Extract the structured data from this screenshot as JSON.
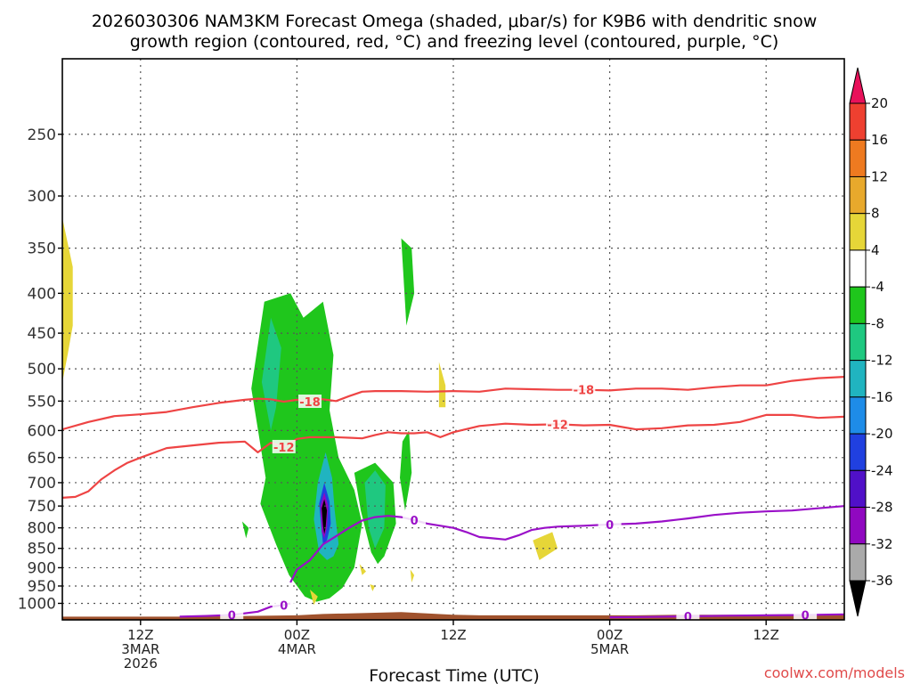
{
  "chart_data": {
    "type": "time-height cross section",
    "title_line1": "2026030306 NAM3KM Forecast Omega (shaded, μbar/s) for K9B6 with dendritic snow",
    "title_line2": "growth region (contoured, red, °C) and freezing level (contoured, purple, °C)",
    "xlabel": "Forecast Time (UTC)",
    "credit": "coolwx.com/models",
    "x_range_hours": [
      0,
      60
    ],
    "x_ticks": [
      {
        "hour": 6,
        "lines": [
          "12Z",
          "3MAR",
          "2026"
        ]
      },
      {
        "hour": 18,
        "lines": [
          "00Z",
          "4MAR"
        ]
      },
      {
        "hour": 30,
        "lines": [
          "12Z"
        ]
      },
      {
        "hour": 42,
        "lines": [
          "00Z",
          "5MAR"
        ]
      },
      {
        "hour": 54,
        "lines": [
          "12Z"
        ]
      }
    ],
    "y_range_hPa": [
      1050,
      200
    ],
    "y_ticks": [
      250,
      300,
      350,
      400,
      450,
      500,
      550,
      600,
      650,
      700,
      750,
      800,
      850,
      900,
      950,
      1000
    ],
    "colorbar": {
      "levels": [
        20,
        16,
        12,
        8,
        4,
        -4,
        -8,
        -12,
        -16,
        -20,
        -24,
        -28,
        -32,
        -36
      ],
      "colors": [
        "#e8115a",
        "#ee4030",
        "#ee7a20",
        "#e8a92c",
        "#e6d638",
        "#ffffff",
        "#1fc61c",
        "#1fc880",
        "#20b4c0",
        "#1e8ce8",
        "#2040e0",
        "#5010c8",
        "#9008c0",
        "#aaaaaa",
        "#000000"
      ]
    },
    "dgz_contours": [
      {
        "value": -18,
        "label": "-18",
        "x": [
          0,
          2,
          4,
          6,
          8,
          10,
          12,
          14,
          15,
          16,
          17,
          18,
          19,
          19.5,
          20,
          21,
          22,
          23,
          24,
          26,
          28,
          30,
          32,
          34,
          36,
          38,
          40,
          42,
          44,
          46,
          48,
          50,
          52,
          54,
          56,
          58,
          60
        ],
        "p": [
          598,
          585,
          575,
          572,
          568,
          560,
          553,
          548,
          546,
          547,
          551,
          548,
          551,
          547,
          547,
          550,
          542,
          535,
          534,
          534,
          535,
          534,
          535,
          530,
          531,
          532,
          532,
          533,
          530,
          530,
          532,
          528,
          525,
          525,
          518,
          514,
          512
        ]
      },
      {
        "value": -12,
        "label": "-12",
        "x": [
          0,
          1,
          2,
          3,
          4,
          5,
          6,
          8,
          10,
          12,
          14,
          15,
          16,
          17,
          18,
          19,
          20,
          21,
          22,
          23,
          24,
          25,
          26,
          27,
          28,
          29,
          30,
          32,
          34,
          36,
          38,
          40,
          42,
          44,
          46,
          48,
          50,
          52,
          54,
          56,
          58,
          60
        ],
        "p": [
          732,
          730,
          718,
          693,
          675,
          660,
          650,
          632,
          627,
          622,
          620,
          640,
          622,
          630,
          615,
          612,
          612,
          612,
          613,
          614,
          608,
          603,
          605,
          605,
          603,
          612,
          603,
          592,
          588,
          590,
          589,
          591,
          590,
          598,
          596,
          591,
          590,
          585,
          573,
          573,
          578,
          576
        ]
      }
    ],
    "freezing_contours": [
      {
        "value": 0,
        "label": "0",
        "x": [
          17.5,
          18,
          19,
          19.5,
          20,
          21,
          22,
          23,
          24,
          25,
          26,
          27,
          28,
          29,
          30,
          31,
          32,
          33,
          34,
          35,
          36,
          37,
          38,
          40,
          42,
          44,
          46,
          48,
          50,
          52,
          54,
          56,
          58,
          60
        ],
        "p": [
          940,
          905,
          880,
          860,
          840,
          820,
          800,
          783,
          775,
          772,
          775,
          782,
          790,
          795,
          800,
          810,
          822,
          825,
          828,
          818,
          805,
          800,
          797,
          795,
          792,
          790,
          785,
          778,
          770,
          765,
          762,
          760,
          755,
          750
        ]
      },
      {
        "value": 0,
        "label": "0",
        "x": [
          9,
          11,
          13,
          15,
          16,
          17,
          17.5
        ],
        "p": [
          1040,
          1038,
          1035,
          1025,
          1010,
          1005,
          1000
        ]
      },
      {
        "value": 0,
        "label": "0",
        "x": [
          42,
          45,
          48,
          51,
          54,
          57,
          60
        ],
        "p": [
          1042,
          1041,
          1039,
          1037,
          1036,
          1035,
          1033
        ]
      }
    ],
    "omega_regions": [
      {
        "level": 4,
        "x": [
          0,
          0.8,
          0.8,
          0.4,
          0
        ],
        "p": [
          320,
          370,
          440,
          480,
          520
        ]
      },
      {
        "level": -4,
        "x": [
          14.5,
          15.5,
          17.5,
          18.5,
          20.0,
          20.8,
          20.5,
          21.2,
          22.4,
          23.0,
          22.4,
          21.5,
          20.5,
          19.5,
          18.6,
          17.4,
          16.4,
          15.2,
          15.6,
          14.5
        ],
        "p": [
          530,
          410,
          400,
          430,
          410,
          480,
          565,
          650,
          715,
          790,
          900,
          955,
          985,
          995,
          980,
          920,
          840,
          745,
          690,
          530
        ]
      },
      {
        "level": -8,
        "x": [
          15.3,
          16.0,
          16.8,
          16.4,
          16.0,
          15.3
        ],
        "p": [
          520,
          430,
          470,
          560,
          600,
          520
        ]
      },
      {
        "level": -12,
        "x": [
          19.6,
          20.2,
          20.7,
          20.9,
          21.2,
          20.8,
          20.3,
          19.7,
          19.3,
          19.6
        ],
        "p": [
          700,
          640,
          690,
          760,
          840,
          870,
          880,
          860,
          780,
          700
        ]
      },
      {
        "level": -20,
        "x": [
          19.7,
          20.1,
          20.5,
          20.6,
          20.3,
          20.0,
          19.7
        ],
        "p": [
          745,
          700,
          740,
          790,
          830,
          840,
          745
        ]
      },
      {
        "level": -28,
        "x": [
          19.8,
          20.1,
          20.4,
          20.3,
          20.1,
          19.9,
          19.8
        ],
        "p": [
          750,
          720,
          750,
          800,
          825,
          810,
          750
        ]
      },
      {
        "level": -36,
        "x": [
          19.9,
          20.1,
          20.3,
          20.2,
          20.1,
          20.0,
          19.9
        ],
        "p": [
          755,
          735,
          760,
          800,
          815,
          795,
          755
        ]
      },
      {
        "level": -4,
        "x": [
          22.4,
          24.0,
          25.4,
          25.6,
          24.7,
          24.2,
          23.7,
          22.9,
          22.4
        ],
        "p": [
          680,
          660,
          700,
          790,
          870,
          890,
          860,
          760,
          680
        ]
      },
      {
        "level": -8,
        "x": [
          23.2,
          24.0,
          24.8,
          24.7,
          24.0,
          23.5,
          23.2
        ],
        "p": [
          700,
          675,
          705,
          800,
          850,
          800,
          700
        ]
      },
      {
        "level": -4,
        "x": [
          26.1,
          26.6,
          26.8,
          26.3,
          25.9,
          26.1
        ],
        "p": [
          620,
          600,
          680,
          760,
          690,
          620
        ]
      },
      {
        "level": -4,
        "x": [
          26.0,
          26.8,
          27.0,
          26.4,
          26.0
        ],
        "p": [
          340,
          350,
          400,
          440,
          340
        ]
      },
      {
        "level": -4,
        "x": [
          13.8,
          14.3,
          14.1,
          13.8
        ],
        "p": [
          785,
          800,
          825,
          785
        ]
      },
      {
        "level": 4,
        "x": [
          28.9,
          29.4,
          29.4,
          28.9,
          28.9
        ],
        "p": [
          490,
          525,
          560,
          560,
          490
        ]
      },
      {
        "level": 4,
        "x": [
          36.1,
          37.6,
          38.0,
          36.6,
          36.1
        ],
        "p": [
          830,
          810,
          850,
          880,
          830
        ]
      },
      {
        "level": 4,
        "x": [
          19.0,
          19.6,
          19.3,
          19.0
        ],
        "p": [
          960,
          980,
          1005,
          960
        ]
      },
      {
        "level": 4,
        "x": [
          22.8,
          23.3,
          23.0,
          22.8
        ],
        "p": [
          890,
          910,
          920,
          890
        ]
      },
      {
        "level": 4,
        "x": [
          23.6,
          24.0,
          23.8,
          23.6
        ],
        "p": [
          945,
          950,
          965,
          945
        ]
      },
      {
        "level": 4,
        "x": [
          26.7,
          27.0,
          26.8,
          26.7
        ],
        "p": [
          905,
          920,
          940,
          905
        ]
      }
    ],
    "terrain": {
      "color": "#a0522d",
      "x": [
        0,
        10,
        14,
        18,
        20,
        22,
        24,
        26,
        28,
        30,
        32,
        34,
        36,
        40,
        44,
        48,
        52,
        56,
        60
      ],
      "p": [
        1040,
        1040,
        1038,
        1036,
        1032,
        1030,
        1028,
        1026,
        1030,
        1034,
        1036,
        1036,
        1036,
        1036,
        1036,
        1034,
        1034,
        1033,
        1032
      ]
    }
  }
}
